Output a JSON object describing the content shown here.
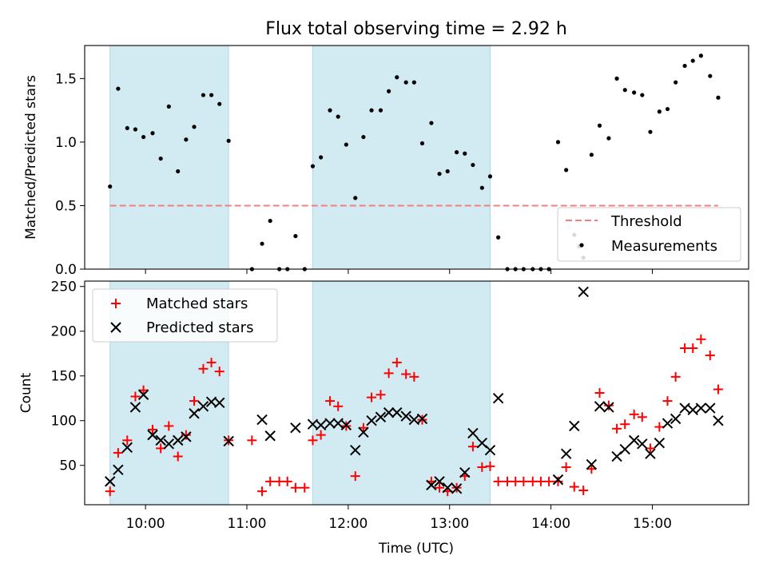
{
  "figure_title": "Flux total observing time = 2.92 h",
  "colors": {
    "band": "#add8e6",
    "threshold": "#f08080",
    "measurement": "#000000",
    "matched": "#ff0000",
    "predicted": "#000000"
  },
  "chart_data": [
    {
      "type": "scatter",
      "panel": "top",
      "ylabel": "Matched/Predicted stars",
      "xlim": [
        9.4,
        15.95
      ],
      "ylim": [
        0,
        1.76
      ],
      "yticks": [
        0.0,
        0.5,
        1.0,
        1.5
      ],
      "ytick_labels": [
        "0.0",
        "0.5",
        "1.0",
        "1.5"
      ],
      "x_tick_positions": [
        10,
        11,
        12,
        13,
        14,
        15
      ],
      "shaded_intervals": [
        [
          9.65,
          10.82
        ],
        [
          11.65,
          13.4
        ]
      ],
      "threshold": {
        "name": "Threshold",
        "value": 0.5,
        "x_range": [
          9.65,
          15.65
        ]
      },
      "legend": {
        "position": "lower right",
        "entries": [
          "Threshold",
          "Measurements"
        ]
      },
      "series": [
        {
          "name": "Measurements",
          "points": [
            [
              9.65,
              0.65
            ],
            [
              9.73,
              1.42
            ],
            [
              9.82,
              1.11
            ],
            [
              9.9,
              1.1
            ],
            [
              9.98,
              1.04
            ],
            [
              10.07,
              1.07
            ],
            [
              10.15,
              0.87
            ],
            [
              10.23,
              1.28
            ],
            [
              10.32,
              0.77
            ],
            [
              10.4,
              1.02
            ],
            [
              10.48,
              1.12
            ],
            [
              10.57,
              1.37
            ],
            [
              10.65,
              1.37
            ],
            [
              10.73,
              1.3
            ],
            [
              10.82,
              1.01
            ],
            [
              11.05,
              0.0
            ],
            [
              11.15,
              0.2
            ],
            [
              11.23,
              0.38
            ],
            [
              11.32,
              0.0
            ],
            [
              11.4,
              0.0
            ],
            [
              11.48,
              0.26
            ],
            [
              11.57,
              0.0
            ],
            [
              11.65,
              0.81
            ],
            [
              11.73,
              0.88
            ],
            [
              11.82,
              1.25
            ],
            [
              11.9,
              1.2
            ],
            [
              11.98,
              0.98
            ],
            [
              12.07,
              0.56
            ],
            [
              12.15,
              1.04
            ],
            [
              12.23,
              1.25
            ],
            [
              12.32,
              1.25
            ],
            [
              12.4,
              1.4
            ],
            [
              12.48,
              1.51
            ],
            [
              12.57,
              1.47
            ],
            [
              12.65,
              1.47
            ],
            [
              12.73,
              0.99
            ],
            [
              12.82,
              1.15
            ],
            [
              12.9,
              0.75
            ],
            [
              12.98,
              0.77
            ],
            [
              13.07,
              0.92
            ],
            [
              13.15,
              0.91
            ],
            [
              13.23,
              0.82
            ],
            [
              13.32,
              0.64
            ],
            [
              13.4,
              0.73
            ],
            [
              13.48,
              0.25
            ],
            [
              13.57,
              0.0
            ],
            [
              13.65,
              0.0
            ],
            [
              13.73,
              0.0
            ],
            [
              13.82,
              0.0
            ],
            [
              13.9,
              0.0
            ],
            [
              13.98,
              0.0
            ],
            [
              14.07,
              1.0
            ],
            [
              14.15,
              0.78
            ],
            [
              14.23,
              0.27
            ],
            [
              14.28,
              0.18
            ],
            [
              14.32,
              0.09
            ],
            [
              14.4,
              0.9
            ],
            [
              14.48,
              1.13
            ],
            [
              14.57,
              1.03
            ],
            [
              14.65,
              1.5
            ],
            [
              14.73,
              1.41
            ],
            [
              14.82,
              1.39
            ],
            [
              14.9,
              1.37
            ],
            [
              14.98,
              1.08
            ],
            [
              15.07,
              1.24
            ],
            [
              15.15,
              1.26
            ],
            [
              15.23,
              1.47
            ],
            [
              15.32,
              1.6
            ],
            [
              15.4,
              1.64
            ],
            [
              15.48,
              1.68
            ],
            [
              15.57,
              1.52
            ],
            [
              15.65,
              1.35
            ]
          ]
        }
      ]
    },
    {
      "type": "scatter",
      "panel": "bottom",
      "xlabel": "Time (UTC)",
      "ylabel": "Count",
      "xlim": [
        9.4,
        15.95
      ],
      "ylim": [
        6,
        256
      ],
      "yticks": [
        50,
        100,
        150,
        200,
        250
      ],
      "ytick_labels": [
        "50",
        "100",
        "150",
        "200",
        "250"
      ],
      "x_ticks": [
        10,
        11,
        12,
        13,
        14,
        15
      ],
      "x_tick_labels": [
        "10:00",
        "11:00",
        "12:00",
        "13:00",
        "14:00",
        "15:00"
      ],
      "shaded_intervals": [
        [
          9.65,
          10.82
        ],
        [
          11.65,
          13.4
        ]
      ],
      "legend": {
        "position": "upper left",
        "entries": [
          "Matched stars",
          "Predicted stars"
        ]
      },
      "series": [
        {
          "name": "Matched stars",
          "marker": "plus",
          "points": [
            [
              9.65,
              21
            ],
            [
              9.73,
              64
            ],
            [
              9.82,
              78
            ],
            [
              9.9,
              127
            ],
            [
              9.98,
              134
            ],
            [
              10.07,
              90
            ],
            [
              10.15,
              69
            ],
            [
              10.23,
              94
            ],
            [
              10.32,
              60
            ],
            [
              10.4,
              84
            ],
            [
              10.48,
              122
            ],
            [
              10.57,
              158
            ],
            [
              10.65,
              165
            ],
            [
              10.73,
              155
            ],
            [
              10.82,
              78
            ],
            [
              11.05,
              78
            ],
            [
              11.15,
              21
            ],
            [
              11.23,
              32
            ],
            [
              11.32,
              32
            ],
            [
              11.4,
              32
            ],
            [
              11.48,
              25
            ],
            [
              11.57,
              25
            ],
            [
              11.65,
              78
            ],
            [
              11.73,
              84
            ],
            [
              11.82,
              122
            ],
            [
              11.9,
              116
            ],
            [
              11.98,
              94
            ],
            [
              12.07,
              38
            ],
            [
              12.15,
              92
            ],
            [
              12.23,
              126
            ],
            [
              12.32,
              129
            ],
            [
              12.4,
              153
            ],
            [
              12.48,
              165
            ],
            [
              12.57,
              152
            ],
            [
              12.65,
              149
            ],
            [
              12.73,
              101
            ],
            [
              12.82,
              32
            ],
            [
              12.9,
              25
            ],
            [
              12.98,
              21
            ],
            [
              13.07,
              25
            ],
            [
              13.15,
              38
            ],
            [
              13.23,
              71
            ],
            [
              13.32,
              48
            ],
            [
              13.4,
              49
            ],
            [
              13.48,
              32
            ],
            [
              13.57,
              32
            ],
            [
              13.65,
              32
            ],
            [
              13.73,
              32
            ],
            [
              13.82,
              32
            ],
            [
              13.9,
              32
            ],
            [
              13.98,
              32
            ],
            [
              14.07,
              32
            ],
            [
              14.15,
              48
            ],
            [
              14.23,
              26
            ],
            [
              14.32,
              22
            ],
            [
              14.4,
              46
            ],
            [
              14.48,
              131
            ],
            [
              14.57,
              117
            ],
            [
              14.65,
              91
            ],
            [
              14.73,
              96
            ],
            [
              14.82,
              107
            ],
            [
              14.9,
              104
            ],
            [
              14.98,
              69
            ],
            [
              15.07,
              93
            ],
            [
              15.15,
              122
            ],
            [
              15.23,
              149
            ],
            [
              15.32,
              181
            ],
            [
              15.4,
              181
            ],
            [
              15.48,
              191
            ],
            [
              15.57,
              173
            ],
            [
              15.65,
              135
            ]
          ]
        },
        {
          "name": "Predicted stars",
          "marker": "x",
          "points": [
            [
              9.65,
              32
            ],
            [
              9.73,
              45
            ],
            [
              9.82,
              70
            ],
            [
              9.9,
              115
            ],
            [
              9.98,
              129
            ],
            [
              10.07,
              84
            ],
            [
              10.15,
              78
            ],
            [
              10.23,
              74
            ],
            [
              10.32,
              78
            ],
            [
              10.4,
              82
            ],
            [
              10.48,
              108
            ],
            [
              10.57,
              116
            ],
            [
              10.65,
              121
            ],
            [
              10.73,
              120
            ],
            [
              10.82,
              77
            ],
            [
              11.15,
              101
            ],
            [
              11.23,
              83
            ],
            [
              11.48,
              92
            ],
            [
              11.65,
              96
            ],
            [
              11.73,
              95
            ],
            [
              11.82,
              97
            ],
            [
              11.9,
              97
            ],
            [
              11.98,
              95
            ],
            [
              12.07,
              67
            ],
            [
              12.15,
              87
            ],
            [
              12.23,
              100
            ],
            [
              12.32,
              104
            ],
            [
              12.4,
              109
            ],
            [
              12.48,
              109
            ],
            [
              12.57,
              105
            ],
            [
              12.65,
              101
            ],
            [
              12.73,
              102
            ],
            [
              12.82,
              28
            ],
            [
              12.9,
              32
            ],
            [
              12.98,
              25
            ],
            [
              13.07,
              24
            ],
            [
              13.15,
              42
            ],
            [
              13.23,
              86
            ],
            [
              13.32,
              75
            ],
            [
              13.4,
              67
            ],
            [
              13.48,
              125
            ],
            [
              14.07,
              34
            ],
            [
              14.15,
              63
            ],
            [
              14.23,
              94
            ],
            [
              14.32,
              244
            ],
            [
              14.4,
              51
            ],
            [
              14.48,
              116
            ],
            [
              14.57,
              115
            ],
            [
              14.65,
              60
            ],
            [
              14.73,
              68
            ],
            [
              14.82,
              78
            ],
            [
              14.9,
              74
            ],
            [
              14.98,
              63
            ],
            [
              15.07,
              75
            ],
            [
              15.15,
              97
            ],
            [
              15.23,
              102
            ],
            [
              15.32,
              114
            ],
            [
              15.4,
              112
            ],
            [
              15.48,
              114
            ],
            [
              15.57,
              114
            ],
            [
              15.65,
              100
            ]
          ]
        }
      ]
    }
  ]
}
